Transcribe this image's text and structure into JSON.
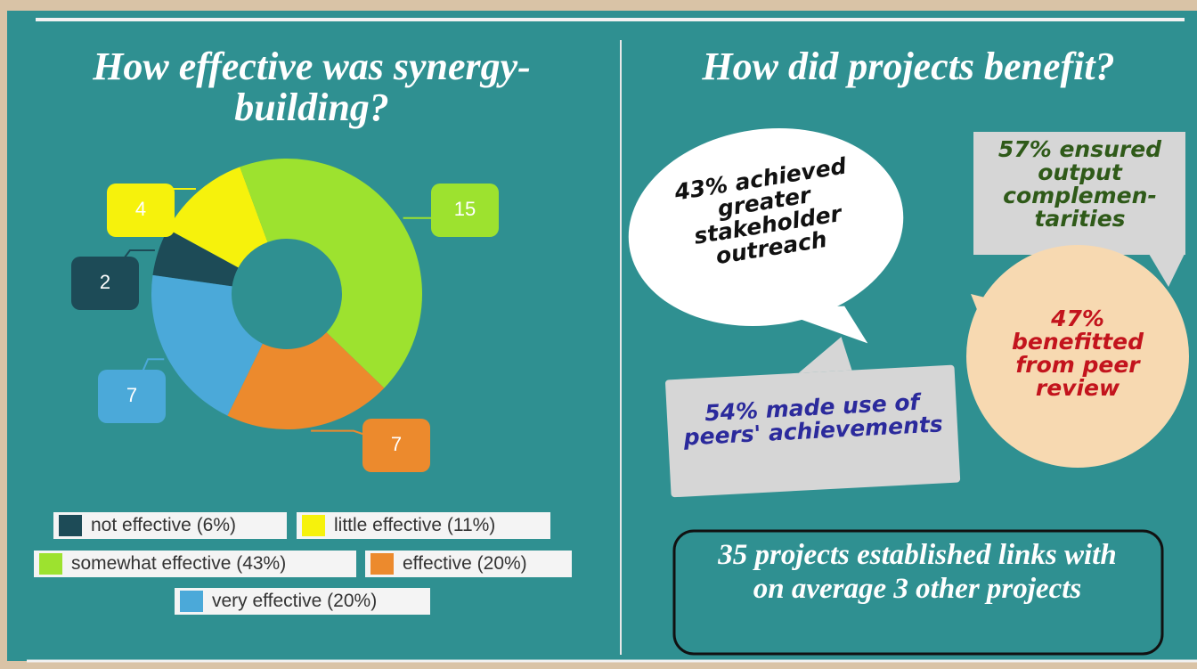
{
  "chart_data": {
    "type": "pie",
    "donut": true,
    "title": "How effective was synergy-building?",
    "categories": [
      "not effective (6%)",
      "little effective (11%)",
      "somewhat effective (43%)",
      "effective (20%)",
      "very effective (20%)"
    ],
    "values": [
      2,
      4,
      15,
      7,
      7
    ],
    "colors": [
      "#1d4b57",
      "#f6f20c",
      "#9de22f",
      "#ec8a2d",
      "#4ba9d9"
    ]
  },
  "right_panel": {
    "title": "How did projects benefit?",
    "callouts": [
      "43% achieved greater stakeholder outreach",
      "57% ensured output complemen-tarities",
      "47% benefitted from peer review",
      "54% made use of peers' achievements"
    ],
    "summary": "35 projects established links with on average 3 other projects"
  }
}
